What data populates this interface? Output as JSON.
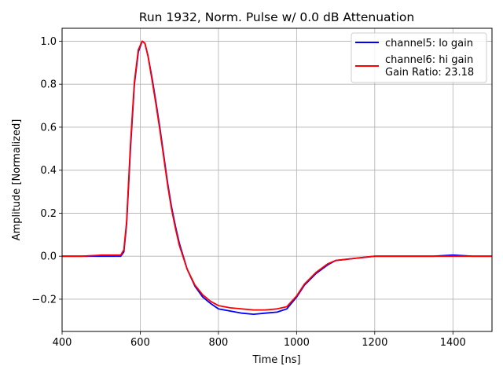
{
  "chart_data": {
    "type": "line",
    "title": "Run 1932, Norm. Pulse w/ 0.0 dB Attenuation",
    "xlabel": "Time [ns]",
    "ylabel": "Amplitude [Normalized]",
    "xlim": [
      400,
      1500
    ],
    "ylim": [
      -0.35,
      1.06
    ],
    "xticks": [
      400,
      600,
      800,
      1000,
      1200,
      1400
    ],
    "yticks": [
      -0.2,
      0.0,
      0.2,
      0.4,
      0.6,
      0.8,
      1.0
    ],
    "xtick_labels": [
      "400",
      "600",
      "800",
      "1000",
      "1200",
      "1400"
    ],
    "ytick_labels": [
      "−0.2",
      "0.0",
      "0.2",
      "0.4",
      "0.6",
      "0.8",
      "1.0"
    ],
    "grid": true,
    "legend_position": "top-right",
    "legend_note": "Gain Ratio: 23.18",
    "series": [
      {
        "name": "channel5: lo gain",
        "color": "#0000ff",
        "x": [
          400,
          450,
          500,
          550,
          558,
          565,
          575,
          585,
          595,
          605,
          612,
          620,
          630,
          640,
          650,
          660,
          670,
          680,
          690,
          700,
          720,
          740,
          760,
          780,
          800,
          830,
          860,
          890,
          920,
          950,
          975,
          1000,
          1020,
          1050,
          1080,
          1100,
          1150,
          1200,
          1250,
          1300,
          1350,
          1400,
          1450,
          1500
        ],
        "y": [
          0.0,
          0.0,
          0.0,
          0.0,
          0.02,
          0.15,
          0.5,
          0.8,
          0.95,
          1.0,
          0.99,
          0.93,
          0.83,
          0.72,
          0.6,
          0.47,
          0.34,
          0.23,
          0.14,
          0.06,
          -0.06,
          -0.14,
          -0.19,
          -0.22,
          -0.245,
          -0.255,
          -0.265,
          -0.27,
          -0.265,
          -0.26,
          -0.245,
          -0.19,
          -0.135,
          -0.08,
          -0.04,
          -0.02,
          -0.01,
          0.0,
          0.0,
          0.0,
          0.0,
          0.005,
          0.0,
          0.0
        ]
      },
      {
        "name": "channel6: hi gain",
        "color": "#ff0000",
        "x": [
          400,
          450,
          500,
          550,
          558,
          565,
          575,
          585,
          595,
          605,
          612,
          620,
          630,
          640,
          650,
          660,
          670,
          680,
          690,
          700,
          720,
          740,
          760,
          780,
          800,
          830,
          860,
          890,
          920,
          950,
          975,
          1000,
          1020,
          1050,
          1080,
          1100,
          1150,
          1200,
          1250,
          1300,
          1350,
          1400,
          1450,
          1500
        ],
        "y": [
          0.0,
          0.0,
          0.005,
          0.005,
          0.03,
          0.16,
          0.52,
          0.81,
          0.96,
          1.0,
          0.99,
          0.93,
          0.82,
          0.71,
          0.59,
          0.46,
          0.33,
          0.22,
          0.13,
          0.05,
          -0.06,
          -0.135,
          -0.18,
          -0.21,
          -0.23,
          -0.24,
          -0.245,
          -0.25,
          -0.25,
          -0.245,
          -0.235,
          -0.185,
          -0.13,
          -0.075,
          -0.035,
          -0.02,
          -0.01,
          0.0,
          0.0,
          0.0,
          0.0,
          0.0,
          0.0,
          0.0
        ]
      }
    ]
  }
}
